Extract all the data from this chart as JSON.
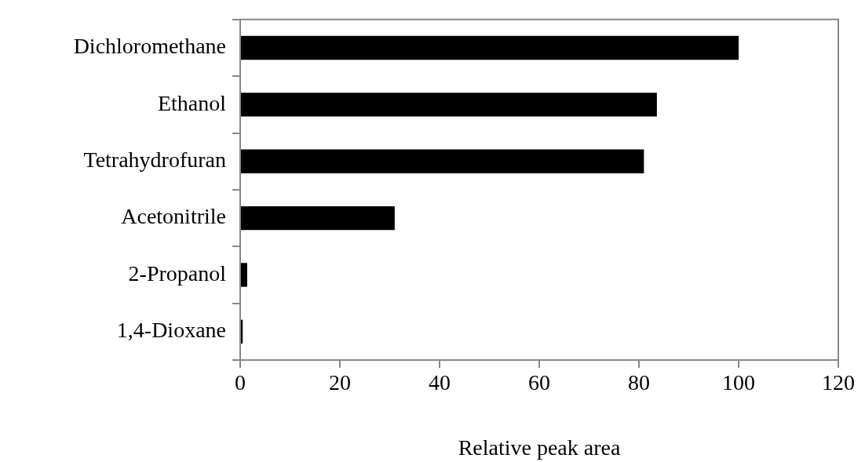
{
  "chart_data": {
    "type": "bar",
    "orientation": "horizontal",
    "xlabel": "Relative peak area",
    "categories": [
      "Dichloromethane",
      "Ethanol",
      "Tetrahydrofuran",
      "Acetonitrile",
      "2-Propanol",
      "1,4-Dioxane"
    ],
    "values": [
      100,
      83.6,
      81,
      31,
      1.4,
      0.5
    ],
    "color": "#000000",
    "xlim": [
      0,
      120
    ],
    "xticks": [
      0,
      20,
      40,
      60,
      80,
      100,
      120
    ],
    "grid": false,
    "legend": false
  }
}
